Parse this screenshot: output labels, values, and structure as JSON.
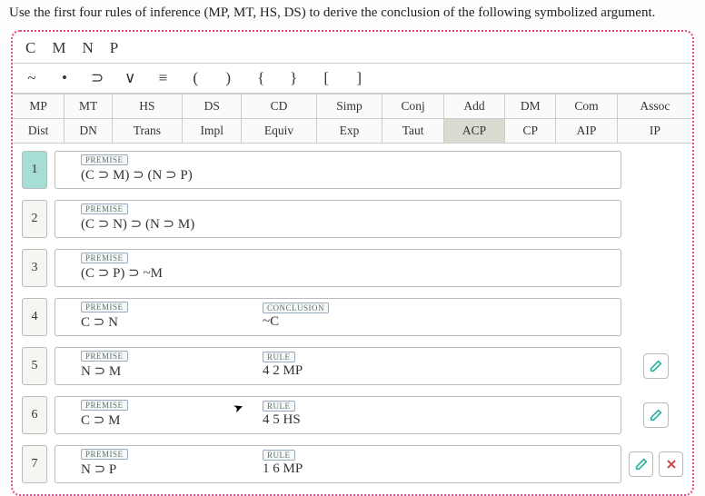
{
  "instruction": "Use the first four rules of inference (MP, MT, HS, DS) to derive the conclusion of the following symbolized argument.",
  "variables": [
    "C",
    "M",
    "N",
    "P"
  ],
  "symbols": [
    "~",
    "•",
    "⊃",
    "∨",
    "≡",
    "(",
    ")",
    "{",
    "}",
    "[",
    "]"
  ],
  "rules_row1": [
    "MP",
    "MT",
    "HS",
    "DS",
    "CD",
    "Simp",
    "Conj",
    "Add",
    "DM",
    "Com",
    "Assoc"
  ],
  "rules_row2": [
    "Dist",
    "DN",
    "Trans",
    "Impl",
    "Equiv",
    "Exp",
    "Taut",
    "ACP",
    "CP",
    "AIP",
    "IP"
  ],
  "proof": [
    {
      "n": "1",
      "active": true,
      "tag1": "PREMISE",
      "f1": "(C ⊃ M) ⊃ (N ⊃ P)",
      "tag2": "",
      "f2": "",
      "edit": false,
      "del": false
    },
    {
      "n": "2",
      "active": false,
      "tag1": "PREMISE",
      "f1": "(C ⊃ N) ⊃ (N ⊃ M)",
      "tag2": "",
      "f2": "",
      "edit": false,
      "del": false
    },
    {
      "n": "3",
      "active": false,
      "tag1": "PREMISE",
      "f1": "(C ⊃ P) ⊃ ~M",
      "tag2": "",
      "f2": "",
      "edit": false,
      "del": false
    },
    {
      "n": "4",
      "active": false,
      "tag1": "PREMISE",
      "f1": "C ⊃ N",
      "tag2": "CONCLUSION",
      "f2": "~C",
      "edit": false,
      "del": false
    },
    {
      "n": "5",
      "active": false,
      "tag1": "PREMISE",
      "f1": "N ⊃ M",
      "tag2": "RULE",
      "f2": "4 2 MP",
      "edit": true,
      "del": false
    },
    {
      "n": "6",
      "active": false,
      "tag1": "PREMISE",
      "f1": "C ⊃ M",
      "tag2": "RULE",
      "f2": "4 5 HS",
      "edit": true,
      "del": false,
      "cursor": true
    },
    {
      "n": "7",
      "active": false,
      "tag1": "PREMISE",
      "f1": "N ⊃ P",
      "tag2": "RULE",
      "f2": "1 6 MP",
      "edit": true,
      "del": true
    }
  ],
  "colors": {
    "edit": "#2eb0a0",
    "del": "#d04848"
  }
}
